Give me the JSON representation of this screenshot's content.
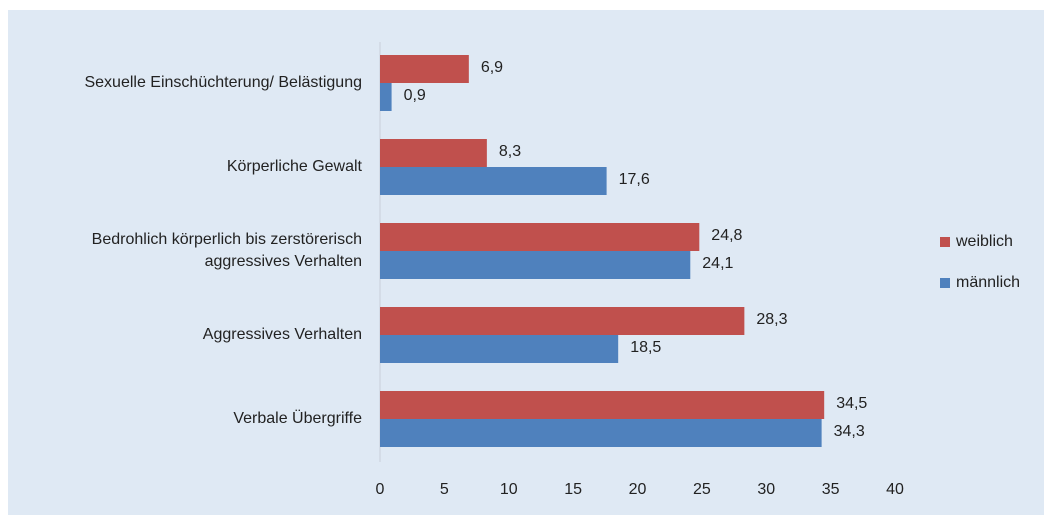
{
  "chart_data": {
    "type": "bar",
    "orientation": "horizontal",
    "categories": [
      "Sexuelle Einschüchterung/ Belästigung",
      "Körperliche Gewalt",
      "Bedrohlich körperlich bis zerstörerisch\naggressives Verhalten",
      "Aggressives Verhalten",
      "Verbale Übergriffe"
    ],
    "series": [
      {
        "name": "weiblich",
        "color": "#c0504d",
        "values": [
          6.9,
          8.3,
          24.8,
          28.3,
          34.5
        ],
        "value_labels": [
          "6,9",
          "8,3",
          "24,8",
          "28,3",
          "34,5"
        ]
      },
      {
        "name": "männlich",
        "color": "#4f81bd",
        "values": [
          0.9,
          17.6,
          24.1,
          18.5,
          34.3
        ],
        "value_labels": [
          "0,9",
          "17,6",
          "24,1",
          "18,5",
          "34,3"
        ]
      }
    ],
    "xlim": [
      0,
      40
    ],
    "xticks": [
      0,
      5,
      10,
      15,
      20,
      25,
      30,
      35,
      40
    ],
    "grid": false,
    "legend": "right"
  }
}
